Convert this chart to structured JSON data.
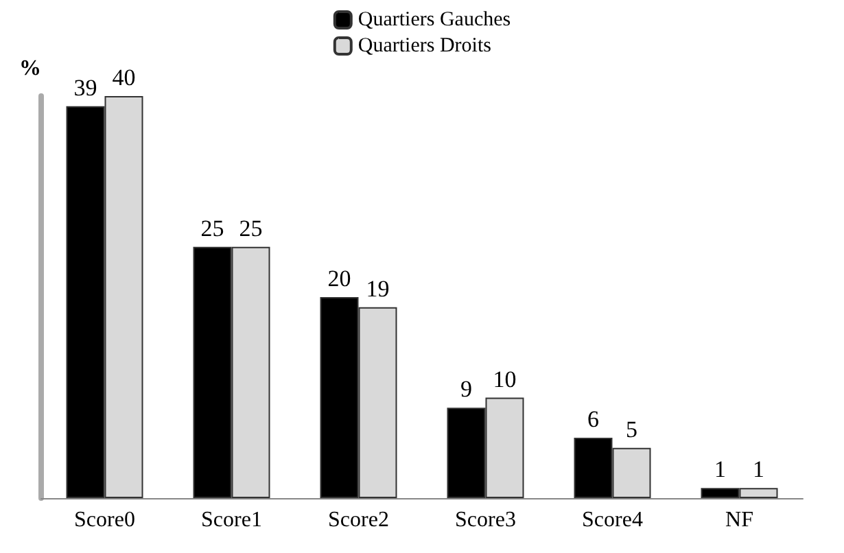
{
  "chart_data": {
    "type": "bar",
    "ylabel": "%",
    "categories": [
      "Score0",
      "Score1",
      "Score2",
      "Score3",
      "Score4",
      "NF"
    ],
    "series": [
      {
        "name": "Quartiers Gauches",
        "color": "#000000",
        "values": [
          39,
          25,
          20,
          9,
          6,
          1
        ]
      },
      {
        "name": "Quartiers Droits",
        "color": "#d9d9d9",
        "values": [
          40,
          25,
          19,
          10,
          5,
          1
        ]
      }
    ],
    "data_labels": true,
    "legend": "top"
  }
}
